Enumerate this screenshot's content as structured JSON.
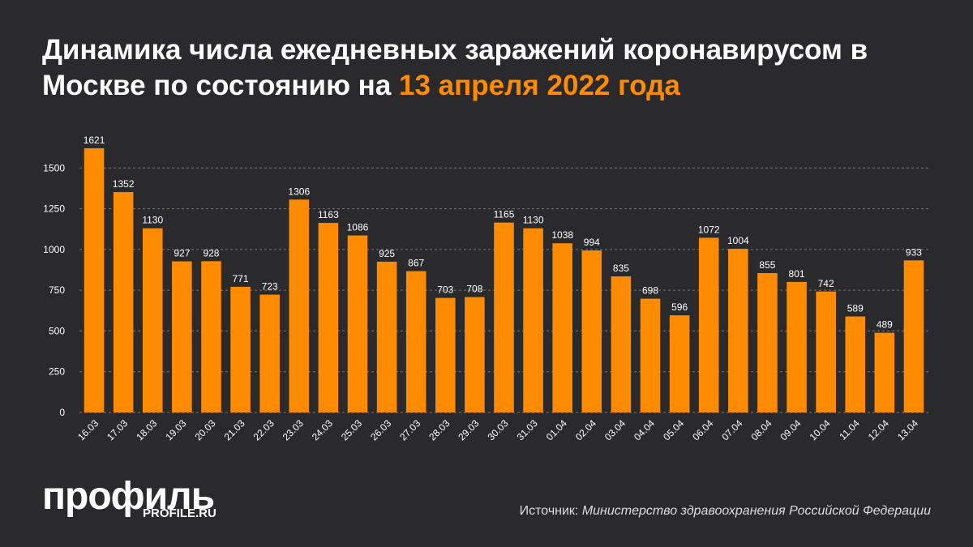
{
  "title": "Динамика числа ежедневных заражений коронавирусом в Москве по состоянию на",
  "title_highlight": "13 апреля 2022 года",
  "logo": "профиль",
  "logo_url": "PROFILE.RU",
  "source_label": "Источник:",
  "source": "Министерство здравоохранения Российской Федерации",
  "chart_data": {
    "type": "bar",
    "categories": [
      "16.03",
      "17.03",
      "18.03",
      "19.03",
      "20.03",
      "21.03",
      "22.03",
      "23.03",
      "24.03",
      "25.03",
      "26.03",
      "27.03",
      "28.03",
      "29.03",
      "30.03",
      "31.03",
      "01.04",
      "02.04",
      "03.04",
      "04.04",
      "05.04",
      "06.04",
      "07.04",
      "08.04",
      "09.04",
      "10.04",
      "11.04",
      "12.04",
      "13.04"
    ],
    "values": [
      1621,
      1352,
      1130,
      927,
      928,
      771,
      723,
      1306,
      1163,
      1086,
      925,
      867,
      703,
      708,
      1165,
      1130,
      1038,
      994,
      835,
      698,
      596,
      1072,
      1004,
      855,
      801,
      742,
      589,
      489,
      933
    ],
    "color": "#ff8c00",
    "ylim": [
      0,
      1750
    ],
    "yticks": [
      0,
      250,
      500,
      750,
      1000,
      1250,
      1500
    ],
    "grid": true
  }
}
